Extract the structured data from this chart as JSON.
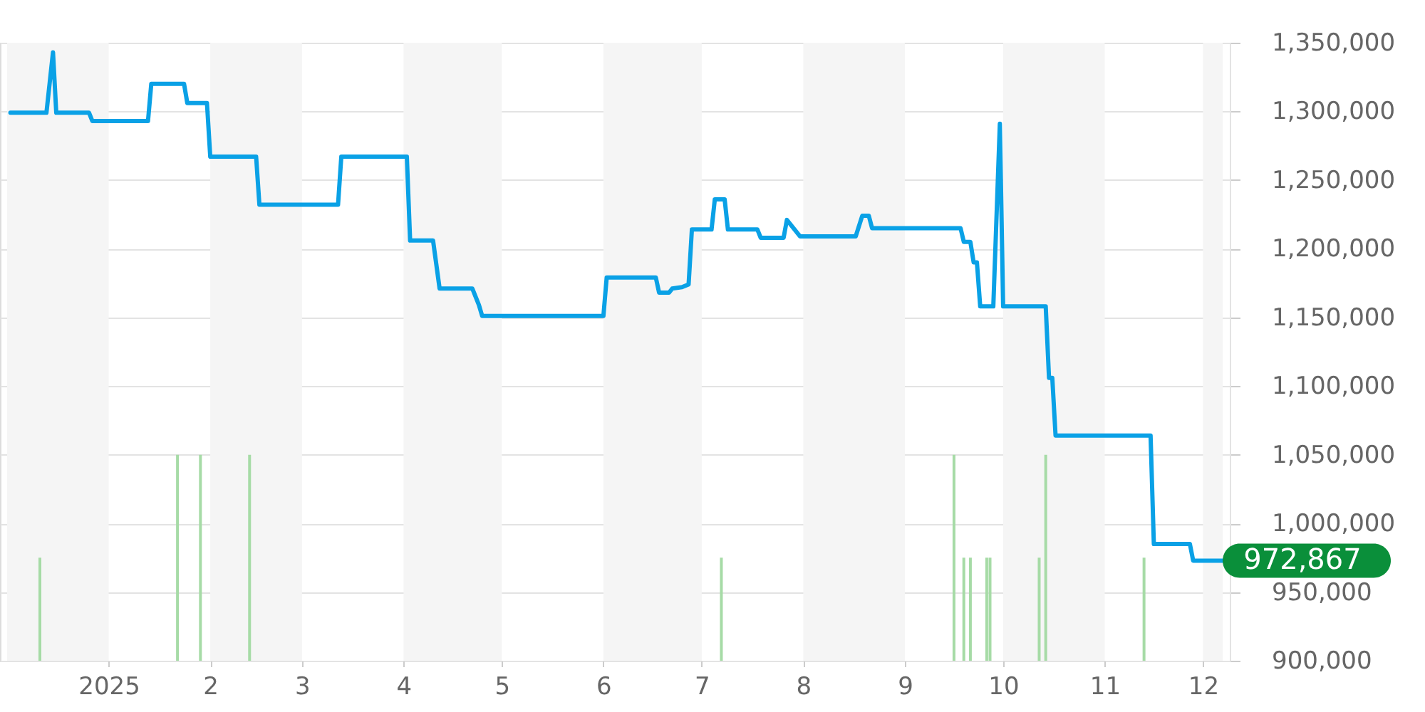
{
  "chart_data": {
    "type": "line",
    "xlim": [
      "2024-12-01",
      "2025-12-07"
    ],
    "xticks": [
      {
        "value": "2025-01-01",
        "label": "2025"
      },
      {
        "value": "2025-02-01",
        "label": "2"
      },
      {
        "value": "2025-03-01",
        "label": "3"
      },
      {
        "value": "2025-04-01",
        "label": "4"
      },
      {
        "value": "2025-05-01",
        "label": "5"
      },
      {
        "value": "2025-06-01",
        "label": "6"
      },
      {
        "value": "2025-07-01",
        "label": "7"
      },
      {
        "value": "2025-08-01",
        "label": "8"
      },
      {
        "value": "2025-09-01",
        "label": "9"
      },
      {
        "value": "2025-10-01",
        "label": "10"
      },
      {
        "value": "2025-11-01",
        "label": "11"
      },
      {
        "value": "2025-12-01",
        "label": "12"
      }
    ],
    "ylim": [
      900000,
      1350000
    ],
    "yticks": [
      {
        "value": 900000,
        "label": "900,000"
      },
      {
        "value": 950000,
        "label": "950,000"
      },
      {
        "value": 1000000,
        "label": "1,000,000"
      },
      {
        "value": 1050000,
        "label": "1,050,000"
      },
      {
        "value": 1100000,
        "label": "1,100,000"
      },
      {
        "value": 1150000,
        "label": "1,150,000"
      },
      {
        "value": 1200000,
        "label": "1,200,000"
      },
      {
        "value": 1250000,
        "label": "1,250,000"
      },
      {
        "value": 1300000,
        "label": "1,300,000"
      },
      {
        "value": 1350000,
        "label": "1,350,000"
      }
    ],
    "grid": "y",
    "bands": [
      {
        "axis": "x",
        "from": "2024-12-01",
        "to": "2025-01-01",
        "color": "#f5f5f5"
      },
      {
        "axis": "x",
        "from": "2025-02-01",
        "to": "2025-03-01",
        "color": "#f5f5f5"
      },
      {
        "axis": "x",
        "from": "2025-04-01",
        "to": "2025-05-01",
        "color": "#f5f5f5"
      },
      {
        "axis": "x",
        "from": "2025-06-01",
        "to": "2025-07-01",
        "color": "#f5f5f5"
      },
      {
        "axis": "x",
        "from": "2025-08-01",
        "to": "2025-09-01",
        "color": "#f5f5f5"
      },
      {
        "axis": "x",
        "from": "2025-10-01",
        "to": "2025-11-01",
        "color": "#f5f5f5"
      },
      {
        "axis": "x",
        "from": "2025-12-01",
        "to": "2025-12-07",
        "color": "#f5f5f5"
      }
    ],
    "series": [
      {
        "type": "bar",
        "color": "#a6dba6",
        "x": [
          "2024-12-11",
          "2025-01-22",
          "2025-01-29",
          "2025-02-13",
          "2025-07-07",
          "2025-09-16",
          "2025-09-19",
          "2025-09-21",
          "2025-09-26",
          "2025-09-27",
          "2025-10-12",
          "2025-10-14",
          "2025-11-13"
        ],
        "values": [
          975000,
          1050000,
          1050000,
          1050000,
          975000,
          1050000,
          975000,
          975000,
          975000,
          975000,
          975000,
          1050000,
          975000
        ]
      },
      {
        "color": "#0aa1e6",
        "x": [
          "2024-12-02",
          "2024-12-13",
          "2024-12-15",
          "2024-12-16",
          "2024-12-26",
          "2024-12-27",
          "2025-01-13",
          "2025-01-14",
          "2025-01-24",
          "2025-01-25",
          "2025-01-31",
          "2025-02-01",
          "2025-02-15",
          "2025-02-16",
          "2025-03-12",
          "2025-03-13",
          "2025-04-02",
          "2025-04-03",
          "2025-04-10",
          "2025-04-12",
          "2025-04-22",
          "2025-04-24",
          "2025-04-25",
          "2025-06-01",
          "2025-06-02",
          "2025-06-17",
          "2025-06-18",
          "2025-06-21",
          "2025-06-22",
          "2025-06-25",
          "2025-06-27",
          "2025-06-28",
          "2025-07-04",
          "2025-07-05",
          "2025-07-08",
          "2025-07-09",
          "2025-07-18",
          "2025-07-19",
          "2025-07-26",
          "2025-07-27",
          "2025-07-29",
          "2025-07-31",
          "2025-08-17",
          "2025-08-19",
          "2025-08-21",
          "2025-08-22",
          "2025-09-18",
          "2025-09-19",
          "2025-09-21",
          "2025-09-22",
          "2025-09-23",
          "2025-09-24",
          "2025-09-28",
          "2025-09-30",
          "2025-10-01",
          "2025-10-14",
          "2025-10-15",
          "2025-10-16",
          "2025-10-17",
          "2025-11-15",
          "2025-11-16",
          "2025-11-27",
          "2025-11-28",
          "2025-12-07"
        ],
        "values": [
          1299000,
          1299000,
          1343000,
          1299000,
          1299000,
          1293000,
          1293000,
          1320000,
          1320000,
          1306000,
          1306000,
          1267000,
          1267000,
          1232000,
          1232000,
          1267000,
          1267000,
          1206000,
          1206000,
          1171000,
          1171000,
          1159000,
          1151000,
          1151000,
          1179000,
          1179000,
          1168000,
          1168000,
          1171000,
          1172000,
          1174000,
          1214000,
          1214000,
          1236000,
          1236000,
          1214000,
          1214000,
          1208000,
          1208000,
          1221000,
          1215000,
          1209000,
          1209000,
          1224000,
          1224000,
          1215000,
          1215000,
          1205000,
          1205000,
          1190000,
          1190000,
          1158000,
          1158000,
          1291000,
          1158000,
          1158000,
          1106000,
          1106000,
          1064000,
          1064000,
          985000,
          985000,
          972867,
          972867
        ]
      }
    ],
    "annotations": [
      {
        "text": "972,867",
        "x": "2025-12-07",
        "y": 972867
      }
    ]
  }
}
